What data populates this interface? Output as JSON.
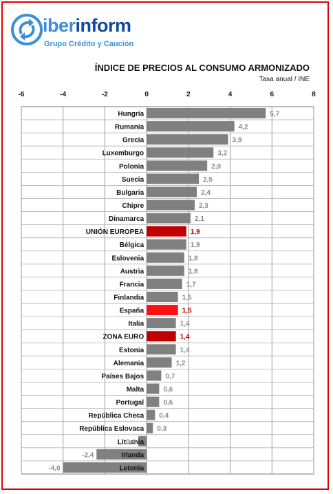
{
  "header": {
    "brand_prefix": "iber",
    "brand_suffix": "inform",
    "tagline": "Grupo Crédito y Caución",
    "title": "ÍNDICE DE PRECIOS AL CONSUMO ARMONIZADO",
    "subtitle": "Tasa anual / INE"
  },
  "colors": {
    "border": "#e00000",
    "bar": "#808080",
    "highlight_eu": "#c00000",
    "highlight_es": "#ff1010",
    "label": "#8a8a8a",
    "label_highlight": "#c00000",
    "logo_blue": "#3c8ed6",
    "logo_dark": "#0f4a9c"
  },
  "chart_data": {
    "type": "bar",
    "orientation": "horizontal",
    "title": "ÍNDICE DE PRECIOS AL CONSUMO ARMONIZADO",
    "subtitle": "Tasa anual / INE",
    "xlim": [
      -6,
      8
    ],
    "xticks": [
      "-6",
      "-4",
      "-2",
      "0",
      "2",
      "4",
      "6",
      "8"
    ],
    "grid": true,
    "categories": [
      "Hungría",
      "Rumanía",
      "Grecia",
      "Luxemburgo",
      "Polonia",
      "Suecia",
      "Bulgaria",
      "Chipre",
      "Dinamarca",
      "UNIÓN EUROPEA",
      "Bélgica",
      "Eslovenia",
      "Austria",
      "Francia",
      "Finlandia",
      "España",
      "Italia",
      "ZONA EURO",
      "Estonia",
      "Alemania",
      "Países Bajos",
      "Malta",
      "Portugal",
      "República Checa",
      "República Eslovaca",
      "Lituania",
      "Irlanda",
      "Letonia"
    ],
    "values": [
      5.7,
      4.2,
      3.9,
      3.2,
      2.9,
      2.5,
      2.4,
      2.3,
      2.1,
      1.9,
      1.9,
      1.8,
      1.8,
      1.7,
      1.5,
      1.5,
      1.4,
      1.4,
      1.4,
      1.2,
      0.7,
      0.6,
      0.6,
      0.4,
      0.3,
      -0.4,
      -2.4,
      -4.0
    ],
    "value_labels": [
      "5,7",
      "4,2",
      "3,9",
      "3,2",
      "2,9",
      "2,5",
      "2,4",
      "2,3",
      "2,1",
      "1,9",
      "1,9",
      "1,8",
      "1,8",
      "1,7",
      "1,5",
      "1,5",
      "1,4",
      "1,4",
      "1,4",
      "1,2",
      "0,7",
      "0,6",
      "0,6",
      "0,4",
      "0,3",
      "-0,4",
      "-2,4",
      "-4,0"
    ],
    "highlighted": {
      "UNIÓN EUROPEA": "eu",
      "España": "es",
      "ZONA EURO": "eu"
    }
  }
}
